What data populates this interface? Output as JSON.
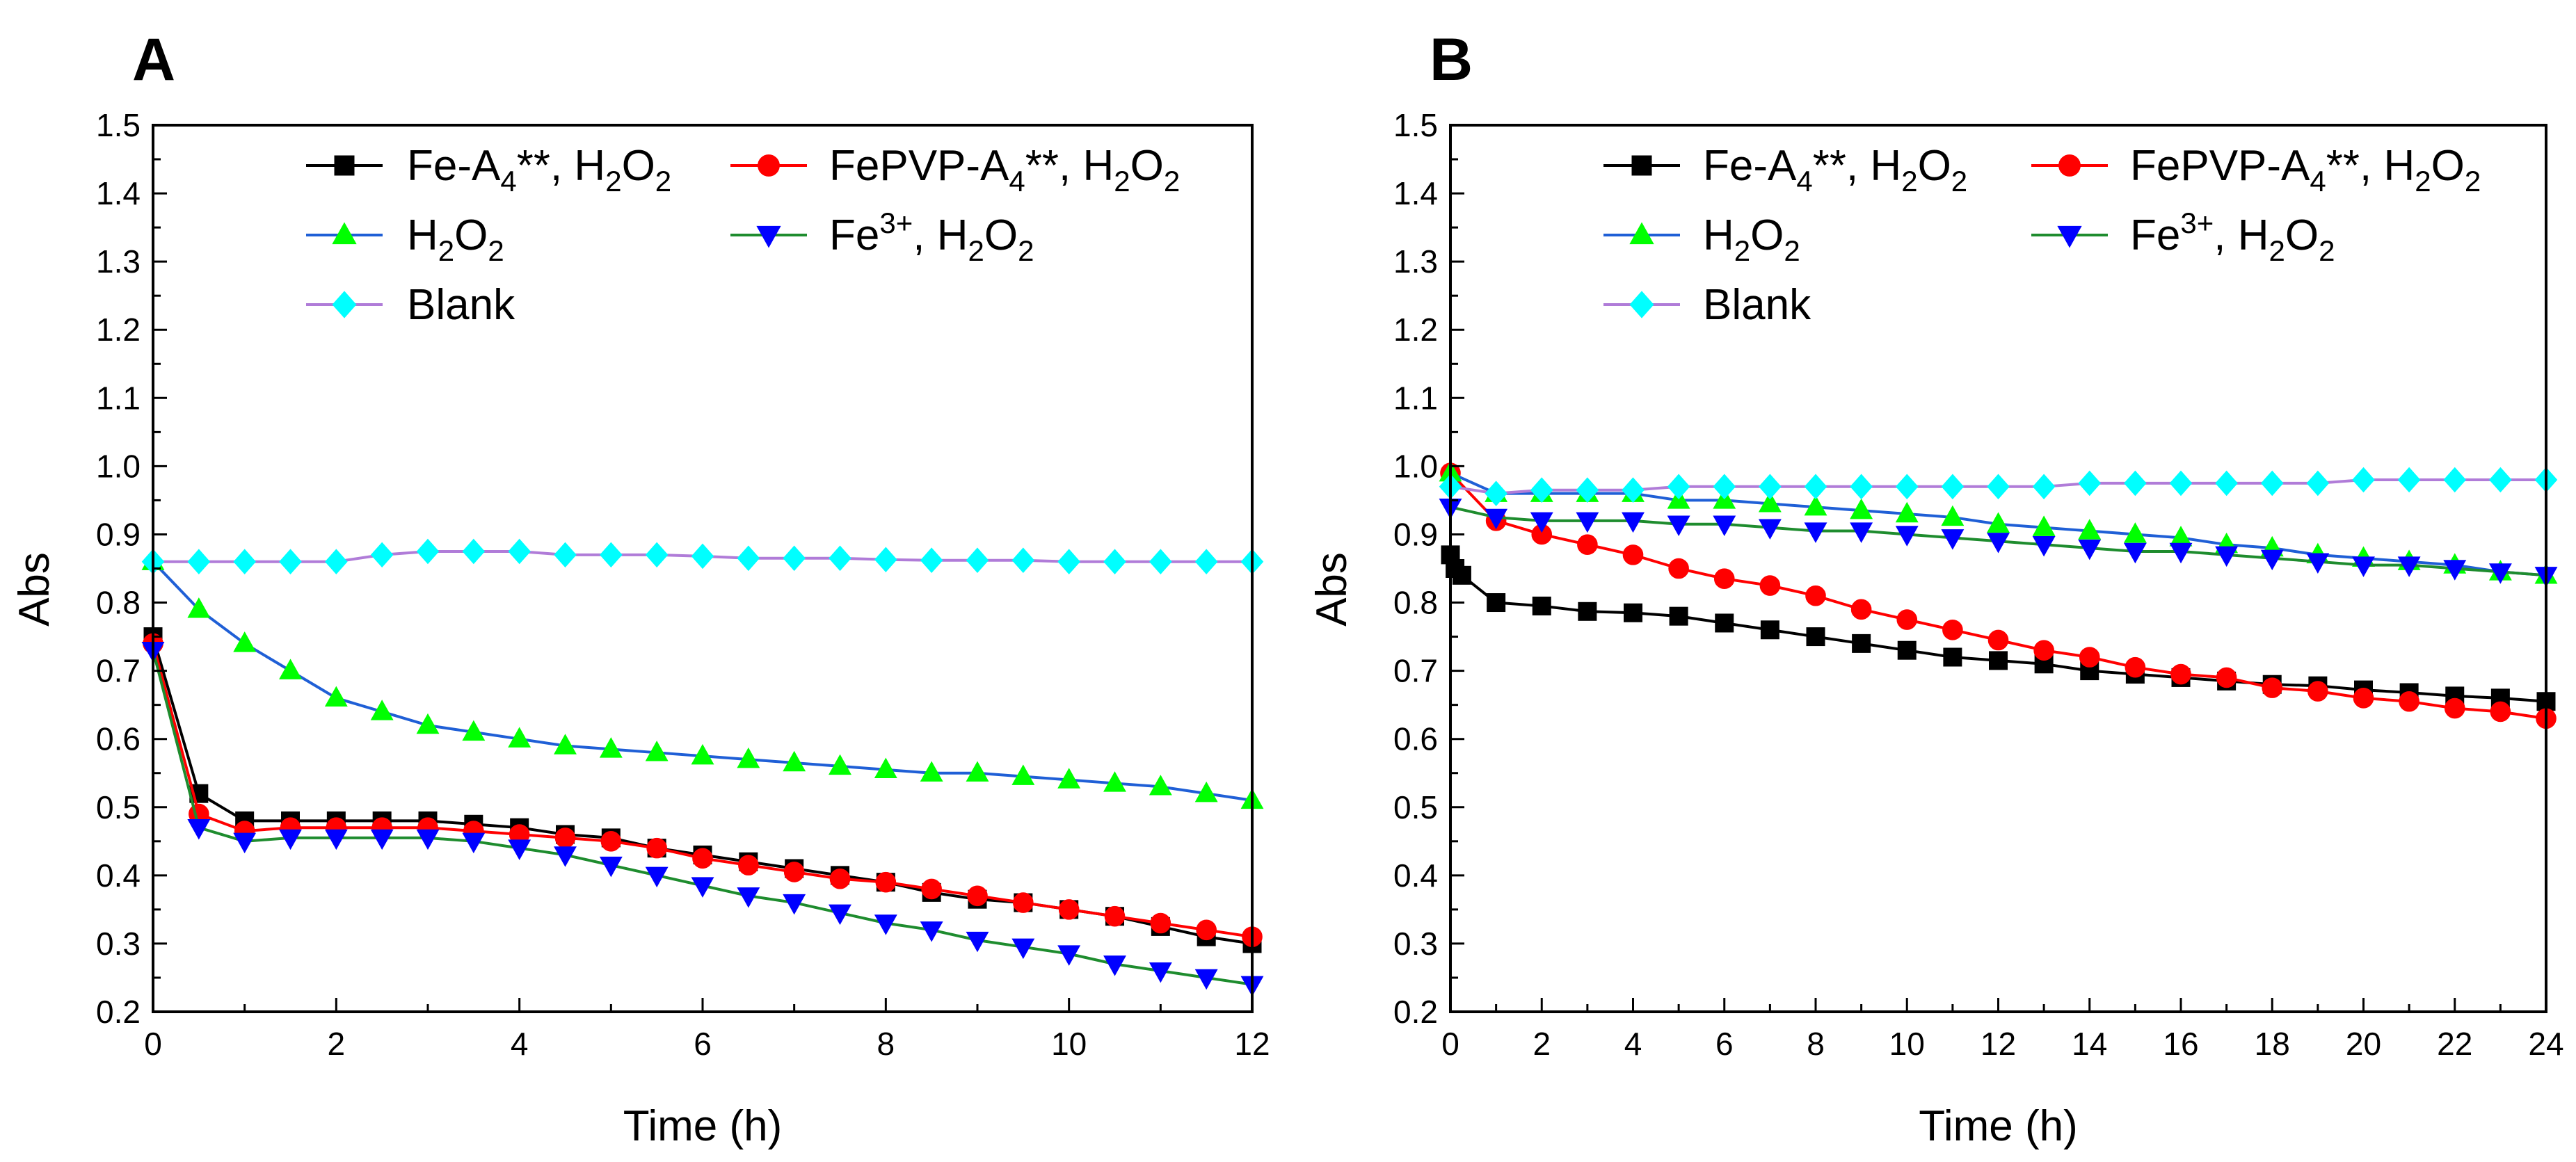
{
  "chart_data": [
    {
      "type": "line",
      "panel_label": "A",
      "xlabel": "Time (h)",
      "ylabel": "Abs",
      "xlim": [
        0,
        12
      ],
      "ylim": [
        0.2,
        1.5
      ],
      "xticks": [
        0,
        2,
        4,
        6,
        8,
        10,
        12
      ],
      "yticks": [
        0.2,
        0.3,
        0.4,
        0.5,
        0.6,
        0.7,
        0.8,
        0.9,
        1.0,
        1.1,
        1.2,
        1.3,
        1.4,
        1.5
      ],
      "grid": false,
      "legend_position": "top",
      "series": [
        {
          "id": "fe-a4",
          "legend": [
            {
              "t": "Fe-A"
            },
            {
              "t": "4",
              "s": "sub"
            },
            {
              "t": "**, H"
            },
            {
              "t": "2",
              "s": "sub"
            },
            {
              "t": "O"
            },
            {
              "t": "2",
              "s": "sub"
            }
          ],
          "color": "#000000",
          "line_color": "#000000",
          "marker": "square",
          "x": [
            0,
            0.5,
            1,
            1.5,
            2,
            2.5,
            3,
            3.5,
            4,
            4.5,
            5,
            5.5,
            6,
            6.5,
            7,
            7.5,
            8,
            8.5,
            9,
            9.5,
            10,
            10.5,
            11,
            11.5,
            12
          ],
          "y": [
            0.75,
            0.52,
            0.48,
            0.48,
            0.48,
            0.48,
            0.48,
            0.475,
            0.47,
            0.46,
            0.455,
            0.44,
            0.43,
            0.42,
            0.41,
            0.4,
            0.39,
            0.375,
            0.365,
            0.36,
            0.35,
            0.34,
            0.325,
            0.31,
            0.3
          ]
        },
        {
          "id": "fepvp-a4",
          "legend": [
            {
              "t": "FePVP-A"
            },
            {
              "t": "4",
              "s": "sub"
            },
            {
              "t": "**, H"
            },
            {
              "t": "2",
              "s": "sub"
            },
            {
              "t": "O"
            },
            {
              "t": "2",
              "s": "sub"
            }
          ],
          "color": "#ff0000",
          "line_color": "#ff0000",
          "marker": "circle",
          "x": [
            0,
            0.5,
            1,
            1.5,
            2,
            2.5,
            3,
            3.5,
            4,
            4.5,
            5,
            5.5,
            6,
            6.5,
            7,
            7.5,
            8,
            8.5,
            9,
            9.5,
            10,
            10.5,
            11,
            11.5,
            12
          ],
          "y": [
            0.74,
            0.49,
            0.465,
            0.47,
            0.47,
            0.47,
            0.47,
            0.465,
            0.46,
            0.455,
            0.45,
            0.44,
            0.425,
            0.415,
            0.405,
            0.395,
            0.39,
            0.38,
            0.37,
            0.36,
            0.35,
            0.34,
            0.33,
            0.32,
            0.31
          ]
        },
        {
          "id": "h2o2",
          "legend": [
            {
              "t": "H"
            },
            {
              "t": "2",
              "s": "sub"
            },
            {
              "t": "O"
            },
            {
              "t": "2",
              "s": "sub"
            }
          ],
          "color": "#00ff00",
          "line_color": "#1f5fd6",
          "marker": "triangle-up",
          "x": [
            0,
            0.5,
            1,
            1.5,
            2,
            2.5,
            3,
            3.5,
            4,
            4.5,
            5,
            5.5,
            6,
            6.5,
            7,
            7.5,
            8,
            8.5,
            9,
            9.5,
            10,
            10.5,
            11,
            11.5,
            12
          ],
          "y": [
            0.86,
            0.79,
            0.74,
            0.7,
            0.66,
            0.64,
            0.62,
            0.61,
            0.6,
            0.59,
            0.585,
            0.58,
            0.575,
            0.57,
            0.565,
            0.56,
            0.555,
            0.55,
            0.55,
            0.545,
            0.54,
            0.535,
            0.53,
            0.52,
            0.51
          ]
        },
        {
          "id": "fe3",
          "legend": [
            {
              "t": "Fe"
            },
            {
              "t": "3+",
              "s": "sup"
            },
            {
              "t": ", H"
            },
            {
              "t": "2",
              "s": "sub"
            },
            {
              "t": "O"
            },
            {
              "t": "2",
              "s": "sub"
            }
          ],
          "color": "#0000ff",
          "line_color": "#1e8c2e",
          "marker": "triangle-down",
          "x": [
            0,
            0.5,
            1,
            1.5,
            2,
            2.5,
            3,
            3.5,
            4,
            4.5,
            5,
            5.5,
            6,
            6.5,
            7,
            7.5,
            8,
            8.5,
            9,
            9.5,
            10,
            10.5,
            11,
            11.5,
            12
          ],
          "y": [
            0.73,
            0.47,
            0.45,
            0.455,
            0.455,
            0.455,
            0.455,
            0.45,
            0.44,
            0.43,
            0.415,
            0.4,
            0.385,
            0.37,
            0.36,
            0.345,
            0.33,
            0.32,
            0.305,
            0.295,
            0.285,
            0.27,
            0.26,
            0.25,
            0.24
          ]
        },
        {
          "id": "blank",
          "legend": [
            {
              "t": "Blank"
            }
          ],
          "color": "#00ffff",
          "line_color": "#b07cd8",
          "marker": "diamond",
          "x": [
            0,
            0.5,
            1,
            1.5,
            2,
            2.5,
            3,
            3.5,
            4,
            4.5,
            5,
            5.5,
            6,
            6.5,
            7,
            7.5,
            8,
            8.5,
            9,
            9.5,
            10,
            10.5,
            11,
            11.5,
            12
          ],
          "y": [
            0.86,
            0.86,
            0.86,
            0.86,
            0.86,
            0.87,
            0.875,
            0.875,
            0.875,
            0.87,
            0.87,
            0.87,
            0.868,
            0.865,
            0.865,
            0.865,
            0.863,
            0.862,
            0.862,
            0.862,
            0.86,
            0.86,
            0.86,
            0.86,
            0.86
          ]
        }
      ]
    },
    {
      "type": "line",
      "panel_label": "B",
      "xlabel": "Time (h)",
      "ylabel": "Abs",
      "xlim": [
        0,
        24
      ],
      "ylim": [
        0.2,
        1.5
      ],
      "xticks": [
        0,
        2,
        4,
        6,
        8,
        10,
        12,
        14,
        16,
        18,
        20,
        22,
        24
      ],
      "yticks": [
        0.2,
        0.3,
        0.4,
        0.5,
        0.6,
        0.7,
        0.8,
        0.9,
        1.0,
        1.1,
        1.2,
        1.3,
        1.4,
        1.5
      ],
      "grid": false,
      "legend_position": "top",
      "series": [
        {
          "id": "fe-a4",
          "legend": [
            {
              "t": "Fe-A"
            },
            {
              "t": "4",
              "s": "sub"
            },
            {
              "t": "**, H"
            },
            {
              "t": "2",
              "s": "sub"
            },
            {
              "t": "O"
            },
            {
              "t": "2",
              "s": "sub"
            }
          ],
          "color": "#000000",
          "line_color": "#000000",
          "marker": "square",
          "x": [
            0,
            0.1,
            0.25,
            1,
            2,
            3,
            4,
            5,
            6,
            7,
            8,
            9,
            10,
            11,
            12,
            13,
            14,
            15,
            16,
            17,
            18,
            19,
            20,
            21,
            22,
            23,
            24
          ],
          "y": [
            0.87,
            0.85,
            0.84,
            0.8,
            0.795,
            0.787,
            0.785,
            0.78,
            0.77,
            0.76,
            0.75,
            0.74,
            0.73,
            0.72,
            0.715,
            0.71,
            0.7,
            0.695,
            0.69,
            0.685,
            0.68,
            0.678,
            0.672,
            0.668,
            0.663,
            0.66,
            0.655
          ]
        },
        {
          "id": "fepvp-a4",
          "legend": [
            {
              "t": "FePVP-A"
            },
            {
              "t": "4",
              "s": "sub"
            },
            {
              "t": "**, H"
            },
            {
              "t": "2",
              "s": "sub"
            },
            {
              "t": "O"
            },
            {
              "t": "2",
              "s": "sub"
            }
          ],
          "color": "#ff0000",
          "line_color": "#ff0000",
          "marker": "circle",
          "x": [
            0,
            1,
            2,
            3,
            4,
            5,
            6,
            7,
            8,
            9,
            10,
            11,
            12,
            13,
            14,
            15,
            16,
            17,
            18,
            19,
            20,
            21,
            22,
            23,
            24
          ],
          "y": [
            0.99,
            0.92,
            0.9,
            0.885,
            0.87,
            0.85,
            0.835,
            0.825,
            0.81,
            0.79,
            0.775,
            0.76,
            0.745,
            0.73,
            0.72,
            0.705,
            0.695,
            0.69,
            0.675,
            0.67,
            0.66,
            0.655,
            0.645,
            0.64,
            0.63
          ]
        },
        {
          "id": "h2o2",
          "legend": [
            {
              "t": "H"
            },
            {
              "t": "2",
              "s": "sub"
            },
            {
              "t": "O"
            },
            {
              "t": "2",
              "s": "sub"
            }
          ],
          "color": "#00ff00",
          "line_color": "#1f5fd6",
          "marker": "triangle-up",
          "x": [
            0,
            1,
            2,
            3,
            4,
            5,
            6,
            7,
            8,
            9,
            10,
            11,
            12,
            13,
            14,
            15,
            16,
            17,
            18,
            19,
            20,
            21,
            22,
            23,
            24
          ],
          "y": [
            0.99,
            0.96,
            0.96,
            0.96,
            0.96,
            0.95,
            0.95,
            0.945,
            0.94,
            0.935,
            0.93,
            0.925,
            0.915,
            0.91,
            0.905,
            0.9,
            0.895,
            0.885,
            0.88,
            0.87,
            0.865,
            0.86,
            0.855,
            0.845,
            0.84
          ]
        },
        {
          "id": "fe3",
          "legend": [
            {
              "t": "Fe"
            },
            {
              "t": "3+",
              "s": "sup"
            },
            {
              "t": ", H"
            },
            {
              "t": "2",
              "s": "sub"
            },
            {
              "t": "O"
            },
            {
              "t": "2",
              "s": "sub"
            }
          ],
          "color": "#0000ff",
          "line_color": "#1e8c2e",
          "marker": "triangle-down",
          "x": [
            0,
            1,
            2,
            3,
            4,
            5,
            6,
            7,
            8,
            9,
            10,
            11,
            12,
            13,
            14,
            15,
            16,
            17,
            18,
            19,
            20,
            21,
            22,
            23,
            24
          ],
          "y": [
            0.94,
            0.925,
            0.92,
            0.92,
            0.92,
            0.915,
            0.915,
            0.91,
            0.905,
            0.905,
            0.9,
            0.895,
            0.89,
            0.885,
            0.88,
            0.875,
            0.875,
            0.87,
            0.865,
            0.86,
            0.855,
            0.855,
            0.85,
            0.845,
            0.84
          ]
        },
        {
          "id": "blank",
          "legend": [
            {
              "t": "Blank"
            }
          ],
          "color": "#00ffff",
          "line_color": "#b07cd8",
          "marker": "diamond",
          "x": [
            0,
            1,
            2,
            3,
            4,
            5,
            6,
            7,
            8,
            9,
            10,
            11,
            12,
            13,
            14,
            15,
            16,
            17,
            18,
            19,
            20,
            21,
            22,
            23,
            24
          ],
          "y": [
            0.97,
            0.96,
            0.965,
            0.965,
            0.965,
            0.97,
            0.97,
            0.97,
            0.97,
            0.97,
            0.97,
            0.97,
            0.97,
            0.97,
            0.975,
            0.975,
            0.975,
            0.975,
            0.975,
            0.975,
            0.98,
            0.98,
            0.98,
            0.98,
            0.98
          ]
        }
      ]
    }
  ]
}
